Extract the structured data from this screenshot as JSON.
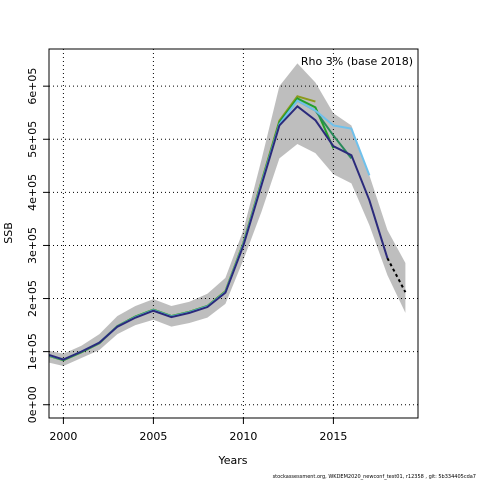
{
  "chart_data": {
    "type": "line",
    "annotation": "Rho 3% (base 2018)",
    "xlabel": "Years",
    "ylabel": "SSB",
    "footer": "stockassessment.org, WKDEM2020_newconf_test01, r12358 , git: 5b334405cda7",
    "x": [
      1999,
      2000,
      2001,
      2002,
      2003,
      2004,
      2005,
      2006,
      2007,
      2008,
      2009,
      2010,
      2011,
      2012,
      2013,
      2014,
      2015,
      2016,
      2017,
      2018,
      2019
    ],
    "xlim": [
      1999.2,
      2019.7
    ],
    "xticks": [
      2000,
      2005,
      2010,
      2015
    ],
    "ylim": [
      -25000,
      670000
    ],
    "yticks": [
      {
        "value": 0,
        "label": "0e+00"
      },
      {
        "value": 100000,
        "label": "1e+05"
      },
      {
        "value": 200000,
        "label": "2e+05"
      },
      {
        "value": 300000,
        "label": "3e+05"
      },
      {
        "value": 400000,
        "label": "4e+05"
      },
      {
        "value": 500000,
        "label": "5e+05"
      },
      {
        "value": 600000,
        "label": "6e+05"
      }
    ],
    "grid": true,
    "band": {
      "color": "#bebebe",
      "upper": [
        103000,
        96000,
        111000,
        133000,
        167000,
        186000,
        199000,
        186000,
        194000,
        209000,
        239000,
        329000,
        461000,
        600000,
        643000,
        607000,
        549000,
        526000,
        432000,
        329000,
        267000
      ],
      "lower": [
        81000,
        73000,
        88000,
        103000,
        133000,
        150000,
        160000,
        147000,
        154000,
        164000,
        190000,
        273000,
        363000,
        464000,
        491000,
        474000,
        434000,
        417000,
        338000,
        244000,
        173000
      ]
    },
    "series": [
      {
        "color": "#8c9a1c",
        "values": [
          94000,
          84000,
          99000,
          116000,
          148000,
          166000,
          179000,
          167000,
          175000,
          186000,
          214000,
          305000,
          420000,
          535000,
          581000,
          571000,
          null,
          null,
          null,
          null,
          null
        ]
      },
      {
        "color": "#22a02a",
        "values": [
          94000,
          84000,
          99000,
          116000,
          148000,
          166000,
          179000,
          167000,
          175000,
          186000,
          213000,
          304000,
          418000,
          532000,
          577000,
          560000,
          483000,
          null,
          null,
          null,
          null
        ]
      },
      {
        "color": "#2a8a5a",
        "values": [
          95000,
          85000,
          100000,
          117000,
          148000,
          165000,
          178000,
          166000,
          174000,
          185000,
          212000,
          302000,
          416000,
          530000,
          573000,
          554000,
          507000,
          464000,
          null,
          null,
          null
        ]
      },
      {
        "color": "#6fc1ec",
        "values": [
          95000,
          85000,
          100000,
          117000,
          147000,
          165000,
          178000,
          166000,
          174000,
          185000,
          212000,
          302000,
          416000,
          528000,
          573000,
          554000,
          526000,
          520000,
          432000,
          null,
          null
        ]
      },
      {
        "color": "#2b2a7b",
        "values": [
          96000,
          85000,
          100000,
          117000,
          147000,
          164000,
          177000,
          165000,
          173000,
          184000,
          211000,
          300000,
          413000,
          526000,
          562000,
          536000,
          487000,
          470000,
          385000,
          276000,
          null
        ]
      },
      {
        "color": "#000000",
        "dashed": true,
        "values": [
          null,
          null,
          null,
          null,
          null,
          null,
          null,
          null,
          null,
          null,
          null,
          null,
          null,
          null,
          null,
          null,
          null,
          null,
          null,
          276000,
          212000
        ]
      }
    ]
  }
}
